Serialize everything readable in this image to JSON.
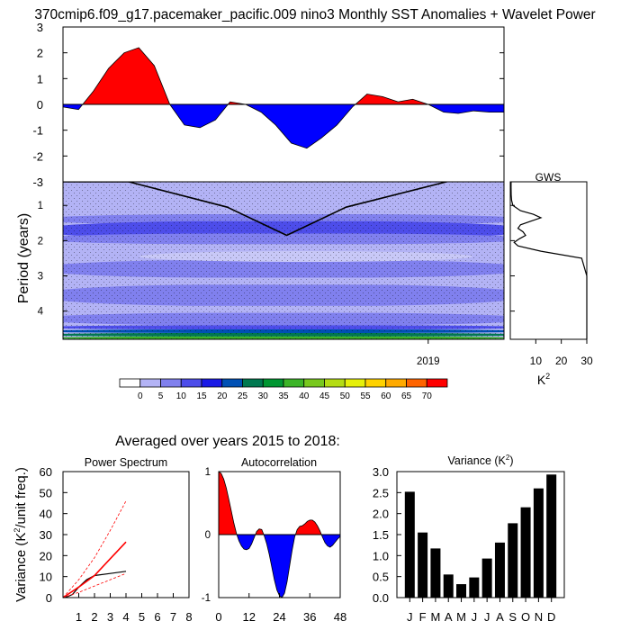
{
  "title": "370cmip6.f09_g17.pacemaker_pacific.009 nino3 Monthly SST Anomalies + Wavelet Power",
  "subtitle": "Averaged over years 2015 to 2018:",
  "colors": {
    "positive": "#ff0000",
    "negative": "#0000ff",
    "power_levels": [
      "#ffffff",
      "#b3b3f5",
      "#8080ee",
      "#4d4dea",
      "#1a1ae6",
      "#0050b4",
      "#007850",
      "#009632",
      "#3cb428",
      "#78c81e",
      "#b4dc14",
      "#e6f00a",
      "#ffd200",
      "#ffaa00",
      "#ff6400",
      "#ff0000"
    ]
  },
  "chart_data": [
    {
      "type": "area",
      "name": "sst_anomaly",
      "xlim": [
        2015.0,
        2019.83
      ],
      "ylim": [
        -3,
        3
      ],
      "yticks": [
        -3,
        -2,
        -1,
        0,
        1,
        2,
        3
      ],
      "x": [
        2015.0,
        2015.17,
        2015.33,
        2015.5,
        2015.67,
        2015.83,
        2016.0,
        2016.17,
        2016.33,
        2016.5,
        2016.67,
        2016.83,
        2017.0,
        2017.17,
        2017.33,
        2017.5,
        2017.67,
        2017.83,
        2018.0,
        2018.17,
        2018.33,
        2018.5,
        2018.67,
        2018.83,
        2019.0,
        2019.17,
        2019.33,
        2019.5,
        2019.67,
        2019.83
      ],
      "y": [
        -0.1,
        -0.2,
        0.5,
        1.4,
        2.0,
        2.2,
        1.5,
        0.0,
        -0.8,
        -0.9,
        -0.6,
        0.1,
        0.0,
        -0.3,
        -0.8,
        -1.5,
        -1.7,
        -1.3,
        -0.8,
        -0.1,
        0.4,
        0.3,
        0.1,
        0.2,
        0.0,
        -0.3,
        -0.35,
        -0.25,
        -0.3,
        -0.3
      ]
    },
    {
      "type": "heatmap",
      "name": "wavelet_power",
      "ylabel": "Period (years)",
      "xticks": [
        2019
      ],
      "yticks": [
        1,
        2,
        3,
        4
      ],
      "xlim": [
        2015.0,
        2019.83
      ],
      "ylim": [
        0.33,
        4.8
      ],
      "bands": [
        {
          "p0": 0.33,
          "p1": 4.8,
          "level": 1
        },
        {
          "p0": 1.25,
          "p1": 1.55,
          "level": 2
        },
        {
          "p0": 1.45,
          "p1": 1.95,
          "level": 3
        },
        {
          "p0": 1.8,
          "p1": 2.1,
          "level": 2
        },
        {
          "p0": 2.55,
          "p1": 3.05,
          "level": 2
        },
        {
          "p0": 3.25,
          "p1": 3.85,
          "level": 2
        },
        {
          "p0": 4.05,
          "p1": 4.4,
          "level": 2
        },
        {
          "p0": 4.4,
          "p1": 4.52,
          "level": 3
        },
        {
          "p0": 4.52,
          "p1": 4.62,
          "level": 5
        },
        {
          "p0": 4.62,
          "p1": 4.72,
          "level": 6
        },
        {
          "p0": 4.72,
          "p1": 4.8,
          "level": 8
        }
      ],
      "cone_of_influence": {
        "x": [
          2015.0,
          2015.72,
          2016.8,
          2017.45,
          2018.1,
          2019.2
        ],
        "period": [
          0.33,
          0.33,
          1.05,
          1.85,
          1.05,
          0.33
        ]
      }
    },
    {
      "type": "line",
      "name": "global_wavelet_spectrum",
      "title": "GWS",
      "xlabel": "K",
      "xlabel_sup": "2",
      "xticks": [
        10,
        20,
        30
      ],
      "xlim": [
        0,
        30
      ],
      "period": [
        0.33,
        0.5,
        0.7,
        0.85,
        1.0,
        1.15,
        1.25,
        1.35,
        1.45,
        1.55,
        1.65,
        1.75,
        1.85,
        1.95,
        2.05,
        2.15,
        2.3,
        2.5,
        3.0,
        4.0,
        4.8
      ],
      "power": [
        0.3,
        0.3,
        0.35,
        0.5,
        1.0,
        4.0,
        9.0,
        12.0,
        8.0,
        4.0,
        3.0,
        5.0,
        6.0,
        3.5,
        1.5,
        3.0,
        12.0,
        28.0,
        30.0,
        30.0,
        30.0
      ]
    },
    {
      "type": "line",
      "name": "power_spectrum",
      "title": "Power Spectrum",
      "ylabel": "Variance (K",
      "ylabel_sup": "2",
      "ylabel_end": "/unit freq.)",
      "xticks": [
        1,
        2,
        3,
        4,
        5,
        6,
        7,
        8
      ],
      "yticks": [
        0,
        10,
        20,
        30,
        40,
        50,
        60
      ],
      "xlim": [
        0,
        8
      ],
      "ylim": [
        0,
        60
      ],
      "series": [
        {
          "x": [
            0.0,
            0.3,
            0.6,
            1.0,
            1.5,
            2.0,
            3.0,
            4.0
          ],
          "values": [
            0,
            0.5,
            1.5,
            5,
            8.5,
            10.5,
            11.5,
            12.5
          ]
        },
        {
          "x": [
            0.0,
            1.0,
            2.0,
            3.0,
            4.0
          ],
          "values": [
            0,
            5.0,
            10.5,
            18.5,
            26.5
          ]
        },
        {
          "x": [
            0.0,
            1.0,
            2.0,
            3.0,
            4.0
          ],
          "values": [
            0,
            8.5,
            19.0,
            32.0,
            46.0
          ]
        },
        {
          "x": [
            0.0,
            1.0,
            2.0,
            3.0,
            4.0
          ],
          "values": [
            0,
            2.5,
            5.5,
            8.5,
            11.5
          ]
        }
      ]
    },
    {
      "type": "area",
      "name": "autocorrelation",
      "title": "Autocorrelation",
      "xticks": [
        0,
        12,
        24,
        36,
        48
      ],
      "yticks": [
        -1,
        0,
        1
      ],
      "xlim": [
        0,
        48
      ],
      "ylim": [
        -1,
        1
      ],
      "x": [
        0,
        1,
        2,
        3,
        4,
        5,
        6,
        7,
        8,
        9,
        10,
        11,
        12,
        13,
        14,
        15,
        16,
        17,
        18,
        19,
        20,
        21,
        22,
        23,
        24,
        25,
        26,
        27,
        28,
        29,
        30,
        31,
        32,
        33,
        34,
        35,
        36,
        37,
        38,
        39,
        40,
        41,
        42,
        43,
        44,
        45,
        46,
        47,
        48
      ],
      "y": [
        1.0,
        0.97,
        0.88,
        0.74,
        0.56,
        0.37,
        0.18,
        0.02,
        -0.1,
        -0.18,
        -0.23,
        -0.24,
        -0.22,
        -0.15,
        -0.05,
        0.05,
        0.09,
        0.08,
        -0.02,
        -0.15,
        -0.32,
        -0.52,
        -0.72,
        -0.88,
        -0.97,
        -1.0,
        -0.93,
        -0.75,
        -0.5,
        -0.25,
        -0.04,
        0.08,
        0.13,
        0.14,
        0.17,
        0.21,
        0.23,
        0.23,
        0.2,
        0.14,
        0.06,
        -0.04,
        -0.13,
        -0.18,
        -0.2,
        -0.17,
        -0.12,
        -0.07,
        -0.03
      ]
    },
    {
      "type": "bar",
      "name": "monthly_variance",
      "title": "Variance (K",
      "title_sup": "2",
      "title_end": ")",
      "categories": [
        "J",
        "F",
        "M",
        "A",
        "M",
        "J",
        "J",
        "A",
        "S",
        "O",
        "N",
        "D"
      ],
      "values": [
        2.52,
        1.55,
        1.17,
        0.55,
        0.32,
        0.48,
        0.93,
        1.31,
        1.77,
        2.15,
        2.6,
        2.93
      ],
      "yticks": [
        0.0,
        0.5,
        1.0,
        1.5,
        2.0,
        2.5,
        3.0
      ],
      "ylim": [
        0,
        3.0
      ]
    }
  ],
  "colorbar": {
    "labels": [
      "0",
      "5",
      "10",
      "15",
      "20",
      "25",
      "30",
      "35",
      "40",
      "45",
      "50",
      "55",
      "60",
      "65",
      "70"
    ]
  }
}
